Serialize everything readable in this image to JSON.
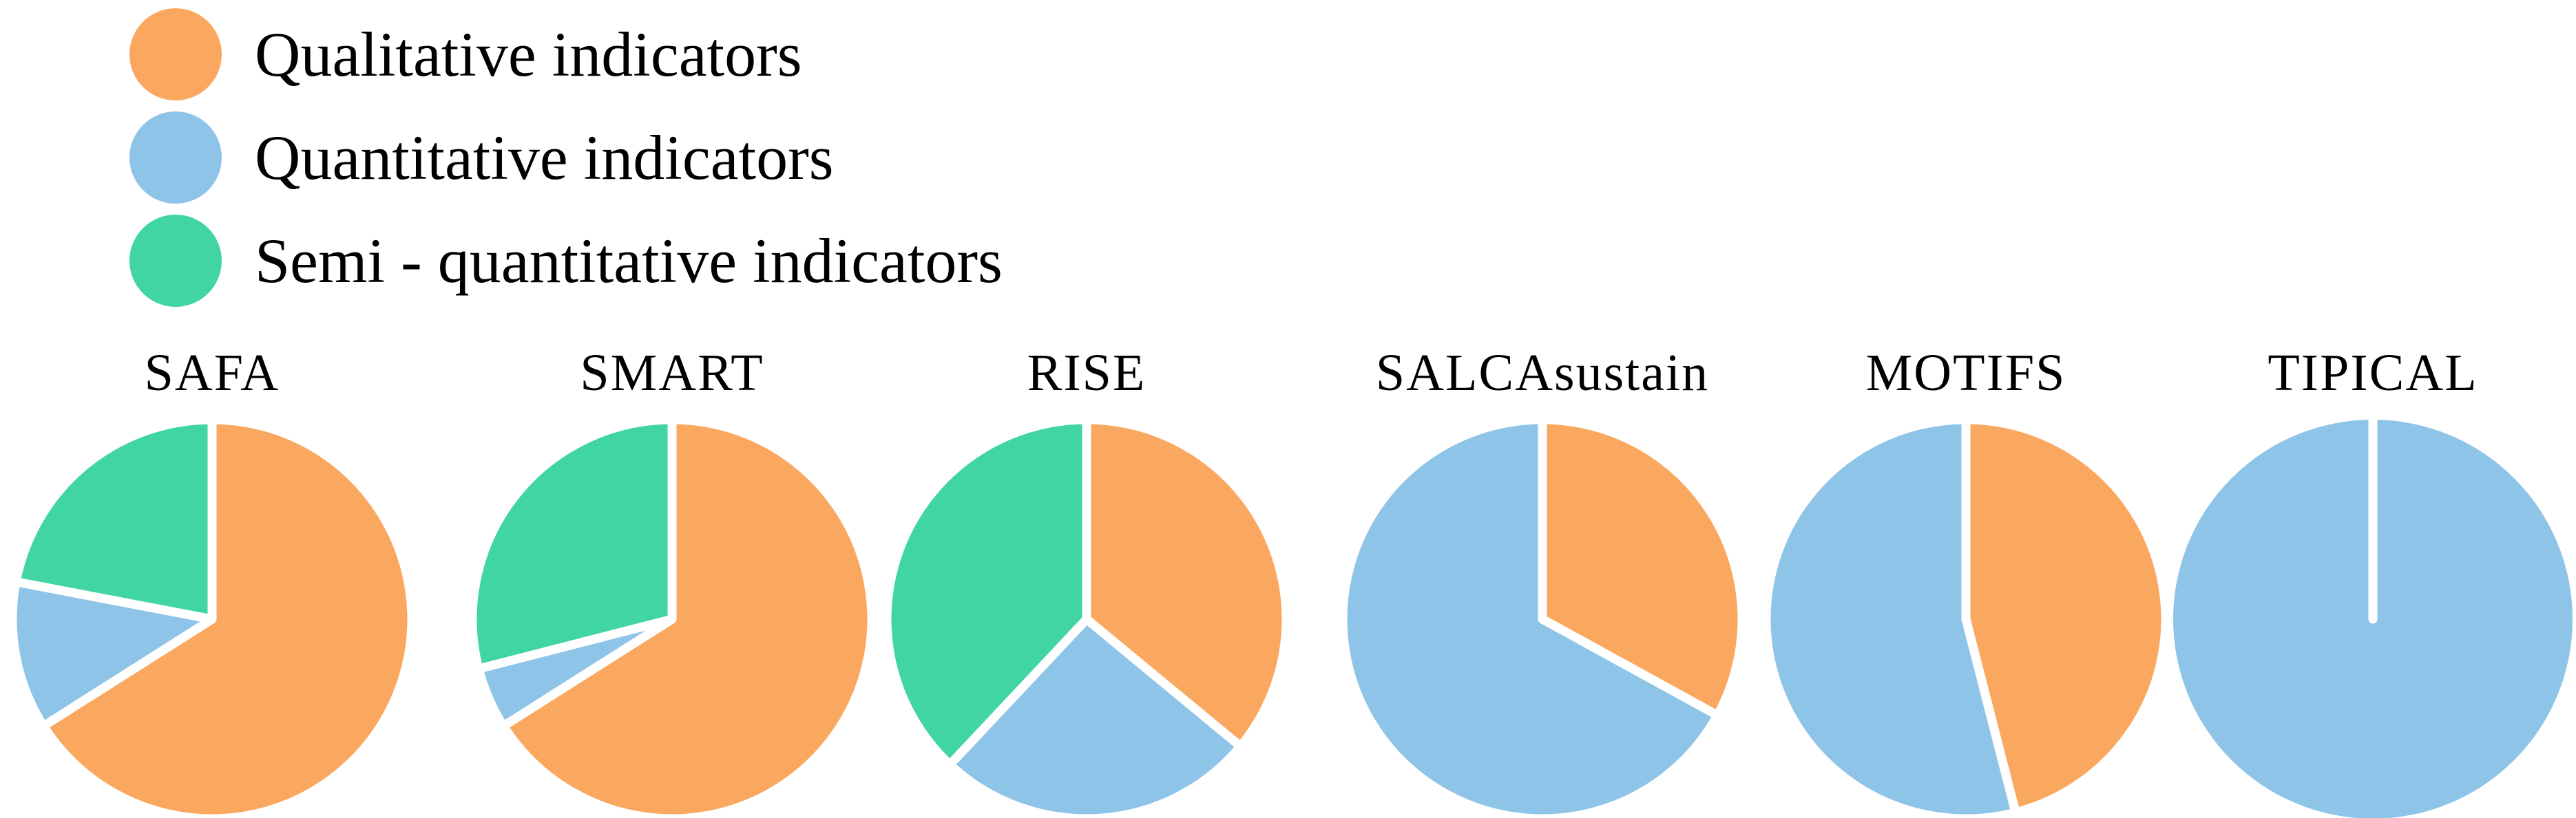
{
  "chart_data": {
    "type": "pie",
    "note": "Six small-multiple pie charts sharing one legend; values are percents estimated from slice angles",
    "legend_position": "top-left",
    "legend": [
      {
        "key": "qualitative",
        "label": "Qualitative indicators",
        "color": "#FAA85F"
      },
      {
        "key": "quantitative",
        "label": "Quantitative indicators",
        "color": "#8FC4E9"
      },
      {
        "key": "semi-quantitative",
        "label": "Semi - quantitative indicators",
        "color": "#41D4A5"
      }
    ],
    "pies": [
      {
        "title": "SAFA",
        "slices": [
          {
            "key": "qualitative",
            "category": "Qualitative indicators",
            "percent": 66
          },
          {
            "key": "quantitative",
            "category": "Quantitative indicators",
            "percent": 12
          },
          {
            "key": "semi-quantitative",
            "category": "Semi - quantitative indicators",
            "percent": 22
          }
        ]
      },
      {
        "title": "SMART",
        "slices": [
          {
            "key": "qualitative",
            "category": "Qualitative indicators",
            "percent": 66
          },
          {
            "key": "quantitative",
            "category": "Quantitative indicators",
            "percent": 5
          },
          {
            "key": "semi-quantitative",
            "category": "Semi - quantitative indicators",
            "percent": 29
          }
        ]
      },
      {
        "title": "RISE",
        "slices": [
          {
            "key": "qualitative",
            "category": "Qualitative indicators",
            "percent": 36
          },
          {
            "key": "quantitative",
            "category": "Quantitative indicators",
            "percent": 26
          },
          {
            "key": "semi-quantitative",
            "category": "Semi - quantitative indicators",
            "percent": 38
          }
        ]
      },
      {
        "title": "SALCAsustain",
        "slices": [
          {
            "key": "qualitative",
            "category": "Qualitative indicators",
            "percent": 33
          },
          {
            "key": "quantitative",
            "category": "Quantitative indicators",
            "percent": 67
          }
        ]
      },
      {
        "title": "MOTIFS",
        "slices": [
          {
            "key": "qualitative",
            "category": "Qualitative indicators",
            "percent": 46
          },
          {
            "key": "quantitative",
            "category": "Quantitative indicators",
            "percent": 54
          }
        ]
      },
      {
        "title": "TIPICAL",
        "slices": [
          {
            "key": "quantitative",
            "category": "Quantitative indicators",
            "percent": 100
          }
        ]
      }
    ]
  }
}
